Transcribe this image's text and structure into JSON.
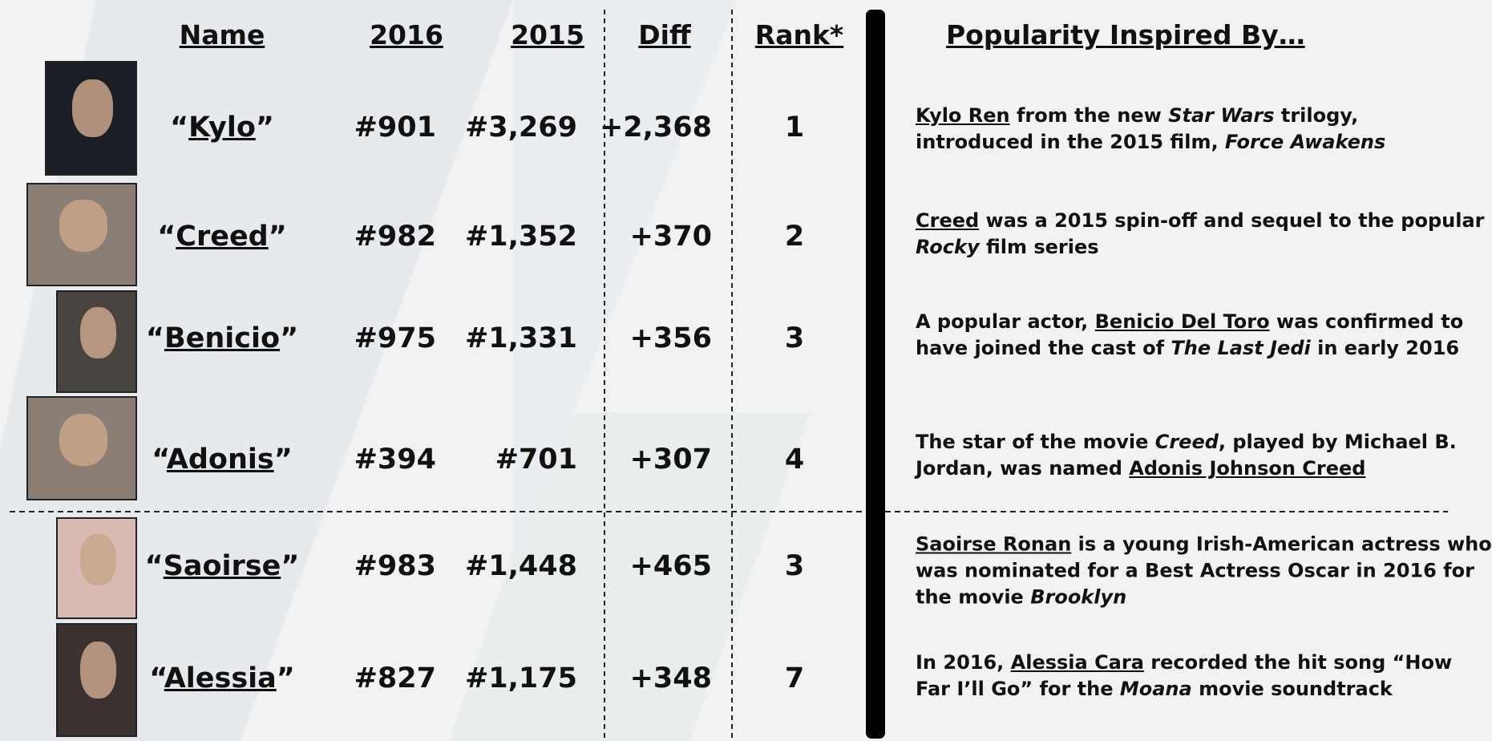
{
  "header": {
    "columns": [
      "Name",
      "2016",
      "2015",
      "Diff",
      "Rank*",
      "Popularity Inspired By…"
    ]
  },
  "rows": [
    {
      "name": [
        {
          "text": "“"
        },
        {
          "text": "Kylo",
          "underline": true
        },
        {
          "text": "”"
        }
      ],
      "y2016": "#901",
      "y2015": "#3,269",
      "diff": "+2,368",
      "rank": "1",
      "description": [
        [
          {
            "text": "Kylo Ren",
            "underline": true
          },
          {
            "text": " from the new "
          },
          {
            "text": "Star Wars",
            "italic": true
          },
          {
            "text": " trilogy,"
          }
        ],
        [
          {
            "text": "introduced in the 2015 film, "
          },
          {
            "text": "Force Awakens",
            "italic": true
          }
        ]
      ]
    },
    {
      "name": [
        {
          "text": "“"
        },
        {
          "text": "Creed",
          "underline": true
        },
        {
          "text": "”"
        }
      ],
      "y2016": "#982",
      "y2015": "#1,352",
      "diff": "+370",
      "rank": "2",
      "description": [
        [
          {
            "text": "Creed",
            "underline": true
          },
          {
            "text": " was a 2015 spin-off and sequel to the popular"
          }
        ],
        [
          {
            "text": "Rocky",
            "italic": true
          },
          {
            "text": " film series"
          }
        ]
      ]
    },
    {
      "name": [
        {
          "text": "“"
        },
        {
          "text": "Benicio",
          "underline": true
        },
        {
          "text": "”"
        }
      ],
      "y2016": "#975",
      "y2015": "#1,331",
      "diff": "+356",
      "rank": "3",
      "description": [
        [
          {
            "text": "A popular actor, "
          },
          {
            "text": "Benicio Del Toro",
            "underline": true
          },
          {
            "text": " was confirmed to"
          }
        ],
        [
          {
            "text": "have joined the cast of "
          },
          {
            "text": "The Last Jedi",
            "italic": true
          },
          {
            "text": " in early 2016"
          }
        ]
      ]
    },
    {
      "name": [
        {
          "text": "“"
        },
        {
          "text": "Adonis",
          "underline": true
        },
        {
          "text": "”"
        }
      ],
      "y2016": "#394",
      "y2015": "#701",
      "diff": "+307",
      "rank": "4",
      "description": [
        [
          {
            "text": "The star of the movie "
          },
          {
            "text": "Creed",
            "italic": true
          },
          {
            "text": ", played by Michael B."
          }
        ],
        [
          {
            "text": "Jordan, was named "
          },
          {
            "text": "Adonis Johnson Creed",
            "underline": true
          }
        ]
      ]
    },
    {
      "name": [
        {
          "text": "“"
        },
        {
          "text": "Saoirse",
          "underline": true
        },
        {
          "text": "”"
        }
      ],
      "y2016": "#983",
      "y2015": "#1,448",
      "diff": "+465",
      "rank": "3",
      "description": [
        [
          {
            "text": "Saoirse Ronan",
            "underline": true
          },
          {
            "text": " is a young Irish-American actress who"
          }
        ],
        [
          {
            "text": "was nominated for a Best Actress Oscar in 2016 for"
          }
        ],
        [
          {
            "text": "the movie "
          },
          {
            "text": "Brooklyn",
            "italic": true
          }
        ]
      ]
    },
    {
      "name": [
        {
          "text": "“"
        },
        {
          "text": "Alessia",
          "underline": true
        },
        {
          "text": "”"
        }
      ],
      "y2016": "#827",
      "y2015": "#1,175",
      "diff": "+348",
      "rank": "7",
      "description": [
        [
          {
            "text": "In 2016, "
          },
          {
            "text": "Alessia Cara",
            "underline": true
          },
          {
            "text": " recorded the hit song “How"
          }
        ],
        [
          {
            "text": "Far I’ll Go” for the "
          },
          {
            "text": "Moana",
            "italic": true
          },
          {
            "text": " movie soundtrack"
          }
        ]
      ]
    }
  ]
}
